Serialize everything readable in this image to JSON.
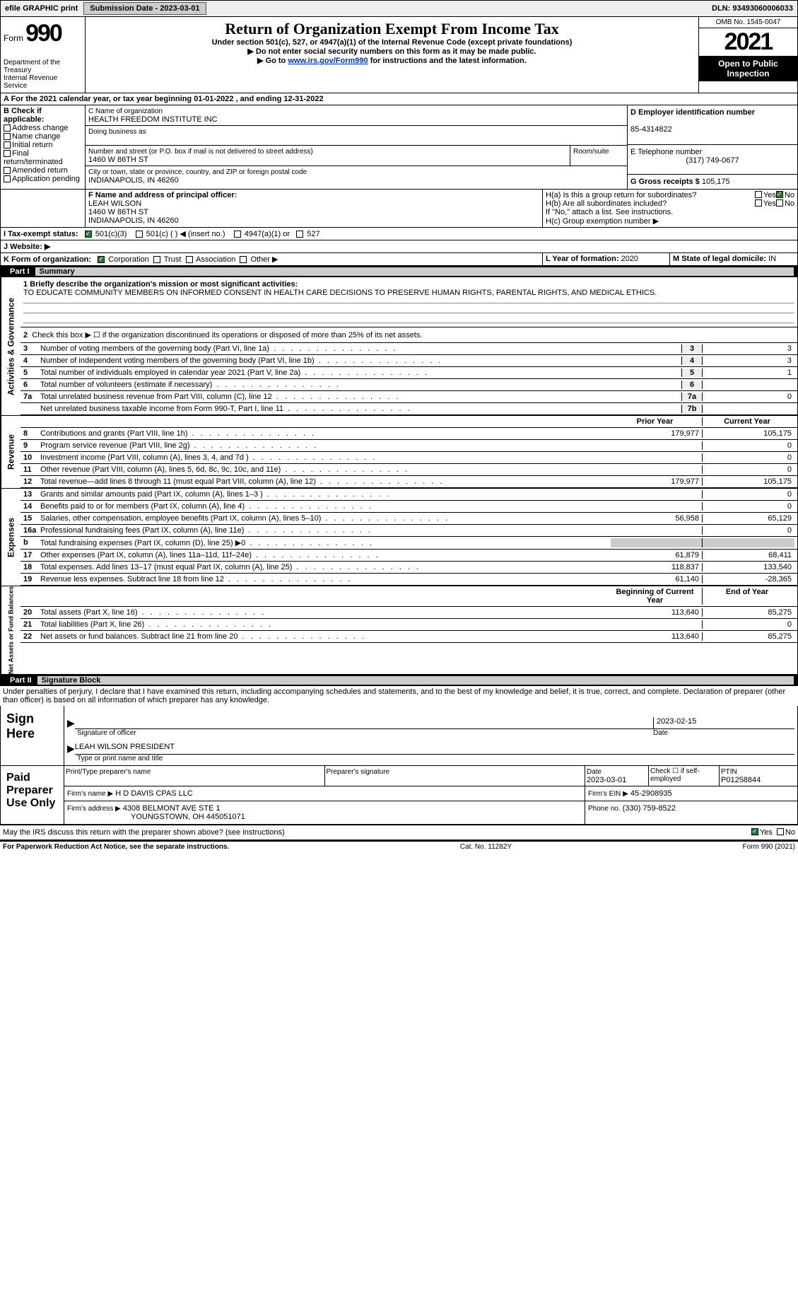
{
  "topbar": {
    "efile": "efile GRAPHIC print",
    "submission": "Submission Date - 2023-03-01",
    "dln": "DLN: 93493060006033"
  },
  "header": {
    "form": "Form",
    "number": "990",
    "dept": "Department of the Treasury",
    "irs": "Internal Revenue Service",
    "title": "Return of Organization Exempt From Income Tax",
    "subtitle": "Under section 501(c), 527, or 4947(a)(1) of the Internal Revenue Code (except private foundations)",
    "note1": "▶ Do not enter social security numbers on this form as it may be made public.",
    "note2_pre": "▶ Go to ",
    "note2_link": "www.irs.gov/Form990",
    "note2_post": " for instructions and the latest information.",
    "omb": "OMB No. 1545-0047",
    "year": "2021",
    "open": "Open to Public Inspection"
  },
  "periodA": "A For the 2021 calendar year, or tax year beginning 01-01-2022   , and ending 12-31-2022",
  "sectionB": {
    "label": "B Check if applicable:",
    "items": [
      "Address change",
      "Name change",
      "Initial return",
      "Final return/terminated",
      "Amended return",
      "Application pending"
    ]
  },
  "sectionC": {
    "nameLabel": "C Name of organization",
    "name": "HEALTH FREEDOM INSTITUTE INC",
    "dba": "Doing business as",
    "addrLabel": "Number and street (or P.O. box if mail is not delivered to street address)",
    "room": "Room/suite",
    "addr": "1460 W 86TH ST",
    "cityLabel": "City or town, state or province, country, and ZIP or foreign postal code",
    "city": "INDIANAPOLIS, IN  46260"
  },
  "sectionD": {
    "label": "D Employer identification number",
    "value": "85-4314822"
  },
  "sectionE": {
    "label": "E Telephone number",
    "value": "(317) 749-0677"
  },
  "sectionG": {
    "label": "G Gross receipts $",
    "value": "105,175"
  },
  "sectionF": {
    "label": "F  Name and address of principal officer:",
    "name": "LEAH WILSON",
    "addr1": "1460 W 86TH ST",
    "addr2": "INDIANAPOLIS, IN  46260"
  },
  "sectionH": {
    "a": "H(a)  Is this a group return for subordinates?",
    "b": "H(b)  Are all subordinates included?",
    "note": "If \"No,\" attach a list. See instructions.",
    "c": "H(c)  Group exemption number ▶",
    "yes": "Yes",
    "no": "No"
  },
  "sectionI": {
    "label": "I  Tax-exempt status:",
    "opts": [
      "501(c)(3)",
      "501(c) (  ) ◀ (insert no.)",
      "4947(a)(1) or",
      "527"
    ]
  },
  "sectionJ": {
    "label": "J  Website: ▶"
  },
  "sectionK": {
    "label": "K Form of organization:",
    "opts": [
      "Corporation",
      "Trust",
      "Association",
      "Other ▶"
    ]
  },
  "sectionL": {
    "label": "L Year of formation:",
    "value": "2020"
  },
  "sectionM": {
    "label": "M State of legal domicile:",
    "value": "IN"
  },
  "partI": {
    "label": "Part I",
    "title": "Summary"
  },
  "summary": {
    "briefLabel": "1  Briefly describe the organization's mission or most significant activities:",
    "brief": "TO EDUCATE COMMUNITY MEMBERS ON INFORMED CONSENT IN HEALTH CARE DECISIONS TO PRESERVE HUMAN RIGHTS, PARENTAL RIGHTS, AND MEDICAL ETHICS.",
    "line2": "Check this box ▶ ☐  if the organization discontinued its operations or disposed of more than 25% of its net assets.",
    "lines": [
      {
        "n": "3",
        "d": "Number of voting members of the governing body (Part VI, line 1a)",
        "b": "3",
        "v": "3"
      },
      {
        "n": "4",
        "d": "Number of independent voting members of the governing body (Part VI, line 1b)",
        "b": "4",
        "v": "3"
      },
      {
        "n": "5",
        "d": "Total number of individuals employed in calendar year 2021 (Part V, line 2a)",
        "b": "5",
        "v": "1"
      },
      {
        "n": "6",
        "d": "Total number of volunteers (estimate if necessary)",
        "b": "6",
        "v": ""
      },
      {
        "n": "7a",
        "d": "Total unrelated business revenue from Part VIII, column (C), line 12",
        "b": "7a",
        "v": "0"
      },
      {
        "n": "",
        "d": "Net unrelated business taxable income from Form 990-T, Part I, line 11",
        "b": "7b",
        "v": ""
      }
    ],
    "priorLabel": "Prior Year",
    "currentLabel": "Current Year",
    "revenue": [
      {
        "n": "8",
        "d": "Contributions and grants (Part VIII, line 1h)",
        "p": "179,977",
        "c": "105,175"
      },
      {
        "n": "9",
        "d": "Program service revenue (Part VIII, line 2g)",
        "p": "",
        "c": "0"
      },
      {
        "n": "10",
        "d": "Investment income (Part VIII, column (A), lines 3, 4, and 7d )",
        "p": "",
        "c": "0"
      },
      {
        "n": "11",
        "d": "Other revenue (Part VIII, column (A), lines 5, 6d, 8c, 9c, 10c, and 11e)",
        "p": "",
        "c": "0"
      },
      {
        "n": "12",
        "d": "Total revenue—add lines 8 through 11 (must equal Part VIII, column (A), line 12)",
        "p": "179,977",
        "c": "105,175"
      }
    ],
    "expenses": [
      {
        "n": "13",
        "d": "Grants and similar amounts paid (Part IX, column (A), lines 1–3 )",
        "p": "",
        "c": "0"
      },
      {
        "n": "14",
        "d": "Benefits paid to or for members (Part IX, column (A), line 4)",
        "p": "",
        "c": "0"
      },
      {
        "n": "15",
        "d": "Salaries, other compensation, employee benefits (Part IX, column (A), lines 5–10)",
        "p": "56,958",
        "c": "65,129"
      },
      {
        "n": "16a",
        "d": "Professional fundraising fees (Part IX, column (A), line 11e)",
        "p": "",
        "c": "0"
      },
      {
        "n": "b",
        "d": "Total fundraising expenses (Part IX, column (D), line 25) ▶0",
        "p": "",
        "c": "",
        "shaded": true
      },
      {
        "n": "17",
        "d": "Other expenses (Part IX, column (A), lines 11a–11d, 11f–24e)",
        "p": "61,879",
        "c": "68,411"
      },
      {
        "n": "18",
        "d": "Total expenses. Add lines 13–17 (must equal Part IX, column (A), line 25)",
        "p": "118,837",
        "c": "133,540"
      },
      {
        "n": "19",
        "d": "Revenue less expenses. Subtract line 18 from line 12",
        "p": "61,140",
        "c": "-28,365"
      }
    ],
    "beginLabel": "Beginning of Current Year",
    "endLabel": "End of Year",
    "netassets": [
      {
        "n": "20",
        "d": "Total assets (Part X, line 16)",
        "p": "113,640",
        "c": "85,275"
      },
      {
        "n": "21",
        "d": "Total liabilities (Part X, line 26)",
        "p": "",
        "c": "0"
      },
      {
        "n": "22",
        "d": "Net assets or fund balances. Subtract line 21 from line 20",
        "p": "113,640",
        "c": "85,275"
      }
    ],
    "sideLabels": {
      "gov": "Activities & Governance",
      "rev": "Revenue",
      "exp": "Expenses",
      "net": "Net Assets or Fund Balances"
    }
  },
  "partII": {
    "label": "Part II",
    "title": "Signature Block"
  },
  "penalties": "Under penalties of perjury, I declare that I have examined this return, including accompanying schedules and statements, and to the best of my knowledge and belief, it is true, correct, and complete. Declaration of preparer (other than officer) is based on all information of which preparer has any knowledge.",
  "sign": {
    "here": "Sign Here",
    "sigOfficer": "Signature of officer",
    "date": "2023-02-15",
    "nameTitle": "LEAH WILSON  PRESIDENT",
    "typePrint": "Type or print name and title"
  },
  "preparer": {
    "title": "Paid Preparer Use Only",
    "printName": "Print/Type preparer's name",
    "sig": "Preparer's signature",
    "dateLabel": "Date",
    "date": "2023-03-01",
    "checkLabel": "Check ☐ if self-employed",
    "ptinLabel": "PTIN",
    "ptin": "P01258844",
    "firmNameLabel": "Firm's name    ▶",
    "firmName": "H D DAVIS CPAS LLC",
    "firmEinLabel": "Firm's EIN ▶",
    "firmEin": "45-2908935",
    "firmAddrLabel": "Firm's address ▶",
    "firmAddr1": "4308 BELMONT AVE STE 1",
    "firmAddr2": "YOUNGSTOWN, OH  445051071",
    "phoneLabel": "Phone no.",
    "phone": "(330) 759-8522"
  },
  "discuss": "May the IRS discuss this return with the preparer shown above? (see instructions)",
  "footer": {
    "paperwork": "For Paperwork Reduction Act Notice, see the separate instructions.",
    "cat": "Cat. No. 11282Y",
    "form": "Form 990 (2021)"
  }
}
